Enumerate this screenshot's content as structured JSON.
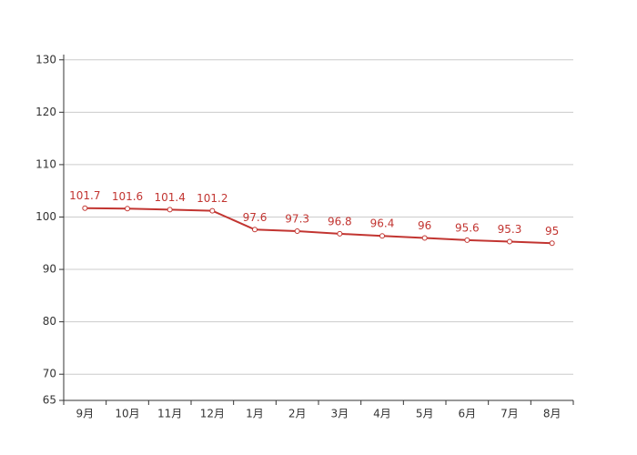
{
  "chart_data": {
    "type": "line",
    "categories": [
      "9月",
      "10月",
      "11月",
      "12月",
      "1月",
      "2月",
      "3月",
      "4月",
      "5月",
      "6月",
      "7月",
      "8月"
    ],
    "values": [
      101.7,
      101.6,
      101.4,
      101.2,
      97.6,
      97.3,
      96.8,
      96.4,
      96,
      95.6,
      95.3,
      95
    ],
    "color": "#c23531",
    "ylim": [
      65,
      131
    ],
    "yticks": [
      65,
      70,
      80,
      90,
      100,
      110,
      120,
      130
    ],
    "grid": true
  }
}
